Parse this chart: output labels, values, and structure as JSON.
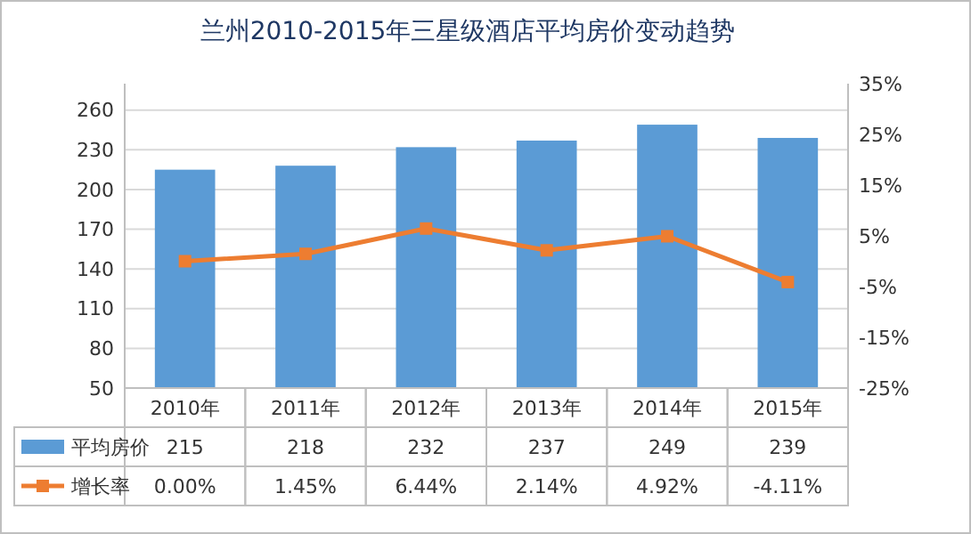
{
  "chart_data": {
    "type": "bar",
    "title": "兰州2010-2015年三星级酒店平均房价变动趋势",
    "categories": [
      "2010年",
      "2011年",
      "2012年",
      "2013年",
      "2014年",
      "2015年"
    ],
    "series": [
      {
        "name": "平均房价",
        "color": "#5b9bd5",
        "values": [
          215,
          218,
          232,
          237,
          249,
          239
        ],
        "value_labels": [
          "215",
          "218",
          "232",
          "237",
          "249",
          "239"
        ]
      },
      {
        "name": "增长率",
        "type": "line",
        "axis": "y2",
        "color": "#ed7d31",
        "marker": "square",
        "values": [
          0,
          1.45,
          6.44,
          2.14,
          4.92,
          -4.11
        ],
        "value_labels": [
          "0.00%",
          "1.45%",
          "6.44%",
          "2.14%",
          "4.92%",
          "-4.11%"
        ]
      }
    ],
    "ylim": [
      50,
      280
    ],
    "yticks": [
      50,
      80,
      110,
      140,
      170,
      200,
      230,
      260
    ],
    "y2lim": [
      -25,
      35
    ],
    "y2ticks": [
      {
        "value": -25,
        "label": "-25%"
      },
      {
        "value": -15,
        "label": "-15%"
      },
      {
        "value": -5,
        "label": "-5%"
      },
      {
        "value": 5,
        "label": "5%"
      },
      {
        "value": 15,
        "label": "15%"
      },
      {
        "value": 25,
        "label": "25%"
      },
      {
        "value": 35,
        "label": "35%"
      }
    ],
    "grid": "y",
    "legend": "bottom"
  }
}
